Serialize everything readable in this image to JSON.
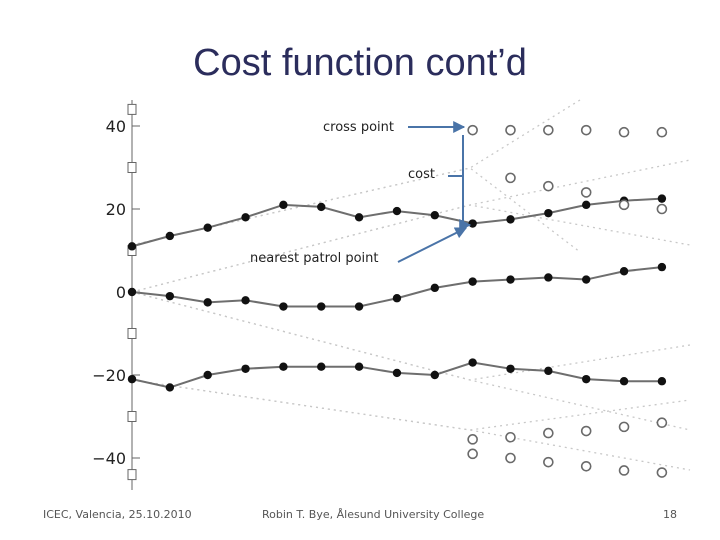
{
  "slide": {
    "title": "Cost function cont’d",
    "footer_left": "ICEC, Valencia, 25.10.2010",
    "footer_center": "Robin T. Bye, Ålesund University College",
    "footer_right": "18"
  },
  "annotations": {
    "cross_point": "cross point",
    "cost": "cost",
    "nearest_patrol_point": "nearest patrol point"
  },
  "colors": {
    "title": "#2b2d5c",
    "arrow": "#4a74a8",
    "series": "#555555"
  },
  "chart_data": {
    "type": "scatter",
    "title": "",
    "xlabel": "",
    "ylabel": "",
    "ylim": [
      -44,
      44
    ],
    "y_ticks": [
      "40",
      "20",
      "0",
      "−20",
      "−40"
    ],
    "x": [
      0,
      1,
      2,
      3,
      4,
      5,
      6,
      7,
      8,
      9,
      10,
      11,
      12,
      13,
      14
    ],
    "series": [
      {
        "marker": "filled",
        "values": [
          11,
          13.5,
          15.5,
          18,
          21,
          20.5,
          18,
          19.5,
          18.5,
          16.5,
          17.5,
          19,
          21,
          22,
          22.5
        ]
      },
      {
        "marker": "filled",
        "values": [
          0,
          -1,
          -2.5,
          -2,
          -3.5,
          -3.5,
          -3.5,
          -1.5,
          1,
          2.5,
          3,
          3.5,
          3,
          5,
          6
        ]
      },
      {
        "marker": "filled",
        "values": [
          -21,
          -23,
          -20,
          -18.5,
          -18,
          -18,
          -18,
          -19.5,
          -20,
          -17,
          -18.5,
          -19,
          -21,
          -21.5,
          -21.5
        ]
      },
      {
        "marker": "open",
        "x": [
          9,
          10,
          11,
          12,
          13,
          14
        ],
        "values": [
          39,
          39,
          39,
          39,
          38.5,
          38.5
        ]
      },
      {
        "marker": "open",
        "x": [
          10,
          11,
          12,
          13,
          14
        ],
        "values": [
          27.5,
          25.5,
          24,
          21,
          20
        ]
      },
      {
        "marker": "open",
        "x": [
          9,
          10,
          11,
          12,
          13,
          14
        ],
        "values": [
          -35.5,
          -35,
          -34,
          -33.5,
          -32.5,
          -31.5
        ]
      },
      {
        "marker": "open",
        "x": [
          9,
          10,
          11,
          12,
          13,
          14
        ],
        "values": [
          -39,
          -40,
          -41,
          -42,
          -43,
          -43.5
        ]
      }
    ]
  }
}
